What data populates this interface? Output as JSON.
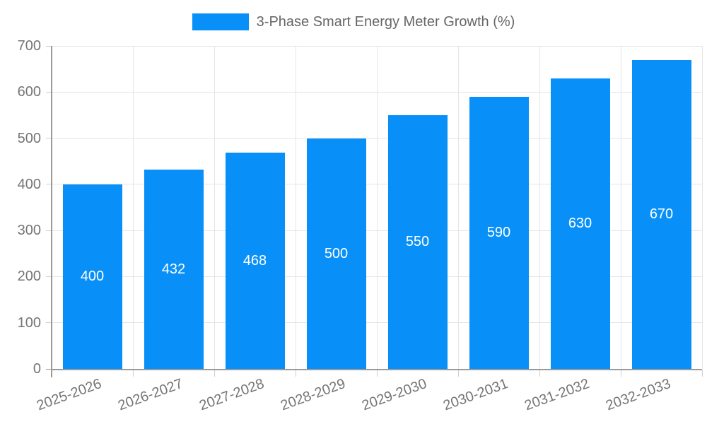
{
  "chart_data": {
    "type": "bar",
    "title": "",
    "legend_label": "3-Phase Smart Energy Meter Growth (%)",
    "legend_position": "top",
    "categories": [
      "2025-2026",
      "2026-2027",
      "2027-2028",
      "2028-2029",
      "2029-2030",
      "2030-2031",
      "2031-2032",
      "2032-2033"
    ],
    "values": [
      400,
      432,
      468,
      500,
      550,
      590,
      630,
      670
    ],
    "xlabel": "",
    "ylabel": "",
    "ylim": [
      0,
      700
    ],
    "y_ticks": [
      0,
      100,
      200,
      300,
      400,
      500,
      600,
      700
    ],
    "grid": "on",
    "bar_labels_shown": true
  },
  "colors": {
    "bar": "#0890F8",
    "bar_label": "#FFFFFF",
    "grid": "#E5E5E5",
    "axis": "#9A9A9A",
    "tick_mark": "#CFCFCF",
    "tick_text": "#757575",
    "legend_text": "#666666",
    "background": "#FFFFFF"
  }
}
